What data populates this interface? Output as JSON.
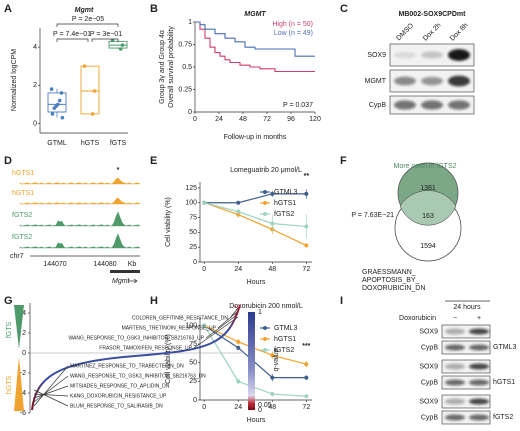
{
  "panel_labels": [
    "A",
    "B",
    "C",
    "D",
    "E",
    "F",
    "G",
    "H",
    "I"
  ],
  "chart_data": [
    {
      "type": "box",
      "title": "Mgmt",
      "ylabel": "Normalized logCPM",
      "categories": [
        "GTML",
        "hGTS",
        "fGTS"
      ],
      "colors": [
        "#4a7fc1",
        "#f0a32e",
        "#4e9a6a"
      ],
      "boxes": [
        {
          "low": 0.3,
          "q1": 0.6,
          "median": 1.0,
          "q3": 1.6,
          "high": 1.8,
          "points": [
            1.8,
            1.6,
            1.2,
            1.0,
            0.9,
            0.8,
            0.5,
            0.3
          ]
        },
        {
          "low": 0.5,
          "q1": 0.5,
          "median": 1.7,
          "q3": 3.0,
          "high": 3.0,
          "points": [
            3.0,
            1.7,
            0.5
          ]
        },
        {
          "low": 3.9,
          "q1": 3.95,
          "median": 4.1,
          "q3": 4.3,
          "high": 4.35,
          "points": [
            4.35,
            4.1,
            3.9
          ]
        }
      ],
      "ylim": [
        -0.5,
        5
      ],
      "yticks": [
        0,
        2,
        4
      ],
      "annotations": [
        "P = 2e−05",
        "P = 7.4e−01",
        "P = 3e−01"
      ]
    },
    {
      "type": "step",
      "title": "MGMT",
      "ylabel": [
        "Group 3γ and Group 4α",
        "Overall survival probability"
      ],
      "xlabel": "Follow-up in months",
      "series": [
        {
          "name": "High (n = 50)",
          "color": "#cf3f6a",
          "x": [
            0,
            5,
            10,
            15,
            20,
            25,
            30,
            35,
            45,
            55,
            65,
            80,
            120
          ],
          "values": [
            1,
            0.92,
            0.82,
            0.72,
            0.66,
            0.62,
            0.58,
            0.55,
            0.52,
            0.5,
            0.48,
            0.45,
            0.45
          ]
        },
        {
          "name": "Low (n = 49)",
          "color": "#4a6fb5",
          "x": [
            0,
            5,
            10,
            20,
            30,
            40,
            50,
            60,
            80,
            100,
            120
          ],
          "values": [
            1,
            0.97,
            0.92,
            0.87,
            0.82,
            0.78,
            0.72,
            0.7,
            0.7,
            0.62,
            0.62
          ]
        }
      ],
      "xlim": [
        0,
        120
      ],
      "xticks": [
        0,
        24,
        48,
        72,
        96,
        120
      ],
      "ylim": [
        0,
        1
      ],
      "yticks": [
        0,
        0.25,
        0.5,
        0.75,
        1
      ],
      "annotation": "P = 0.037",
      "legend": "upper right"
    },
    {
      "type": "line",
      "title": "Lomeguatrib 20 μmol/L",
      "xlabel": "Hours",
      "ylabel": "Cell viability (%)",
      "x": [
        0,
        24,
        48,
        72
      ],
      "series": [
        {
          "name": "GTML3",
          "color": "#3f5f8f",
          "values": [
            100,
            100,
            115,
            115
          ],
          "errors": [
            0,
            3,
            5,
            8
          ]
        },
        {
          "name": "hGTS1",
          "color": "#f0a32e",
          "values": [
            100,
            80,
            55,
            28
          ],
          "errors": [
            0,
            5,
            8,
            3
          ]
        },
        {
          "name": "fGTS2",
          "color": "#9fd3c2",
          "values": [
            100,
            85,
            65,
            60
          ],
          "errors": [
            0,
            5,
            15,
            20
          ]
        }
      ],
      "xlim": [
        -3,
        76
      ],
      "xticks": [
        0,
        24,
        48,
        72
      ],
      "ylim": [
        0,
        135
      ],
      "yticks": [
        0,
        25,
        50,
        75,
        100,
        125
      ],
      "annotation": "**",
      "legend": "upper right"
    },
    {
      "type": "line",
      "title": "Doxorubicin 200 nmol/L",
      "xlabel": "Hours",
      "ylabel": "Cell viability (%)",
      "x": [
        0,
        24,
        48,
        72
      ],
      "series": [
        {
          "name": "GTML3",
          "color": "#3f5f8f",
          "values": [
            100,
            70,
            30,
            30
          ],
          "errors": [
            0,
            3,
            5,
            3
          ]
        },
        {
          "name": "hGTS1",
          "color": "#f0a32e",
          "values": [
            100,
            78,
            60,
            48
          ],
          "errors": [
            0,
            4,
            5,
            4
          ]
        },
        {
          "name": "fGTS2",
          "color": "#9fd3c2",
          "values": [
            100,
            25,
            8,
            5
          ],
          "errors": [
            0,
            4,
            2,
            2
          ]
        }
      ],
      "xlim": [
        -3,
        76
      ],
      "xticks": [
        0,
        24,
        48,
        72
      ],
      "ylim": [
        0,
        110
      ],
      "yticks": [
        0,
        25,
        50,
        75,
        100
      ],
      "annotation": "***",
      "legend": "upper right"
    }
  ],
  "blot_c": {
    "title": "MB002-SOX9CPDmt",
    "lanes": [
      "DMSO",
      "Dox 2h",
      "Dox 8h"
    ],
    "rows": [
      "SOX9",
      "MGMT",
      "CypB"
    ]
  },
  "tracks_d": {
    "tracks": [
      "hGTS1",
      "hGTS1",
      "fGTS2",
      "fGTS2"
    ],
    "chromosome": "chr7",
    "coordinates": [
      "144070",
      "144080"
    ],
    "unit": "Kb",
    "gene": "Mgmt",
    "mark": "*"
  },
  "venn_f": {
    "title": "More open in fGTS2",
    "counts": [
      1381,
      163,
      1594
    ],
    "pvalue": "P = 7.63E−21",
    "set": [
      "GRAESSMANN_",
      "APOPTOSIS_BY_",
      "DOXORUBICIN_DN"
    ]
  },
  "gsea_g": {
    "groups": [
      "fGTS",
      "hGTS"
    ],
    "ylim": [
      -6,
      5
    ],
    "yticks": [
      -6,
      -4,
      -2,
      0,
      2,
      4
    ],
    "up_sets": [
      "COLDREN_GEFITINIB_RESISTANCE_DN",
      "MARTENS_TRETINOIN_RESPONSE_UP",
      "WANG_RESPONSE_TO_GSK3_INHIBITOR_SB216763_UP",
      "FRASOR_TAMOXIFEN_RESPONSE_UP"
    ],
    "down_sets": [
      "MARTINEZ_RESPONSE_TO_TRABECTEDIN_DN",
      "WANG_RESPONSE_TO_GSK3_INHIBITOR_SB216763_DN",
      "MITSIADES_RESPONSE_TO_APLIDIN_DN",
      "KANG_DOXORUBICIN_RESISTANCE_UP",
      "BLUM_RESPONSE_TO_SALIRASIB_DN"
    ],
    "stars": [
      "*",
      "*"
    ],
    "colorbar_title": "q-value",
    "colorbar_ticks": [
      1,
      0.05,
      0
    ]
  },
  "blot_i": {
    "header": "24 hours",
    "treatment": "Doxorubicin",
    "conditions": [
      "−",
      "+"
    ],
    "rows": [
      "SOX9",
      "CypB"
    ],
    "lines": [
      "GTML3",
      "hGTS1",
      "fGTS2"
    ]
  }
}
